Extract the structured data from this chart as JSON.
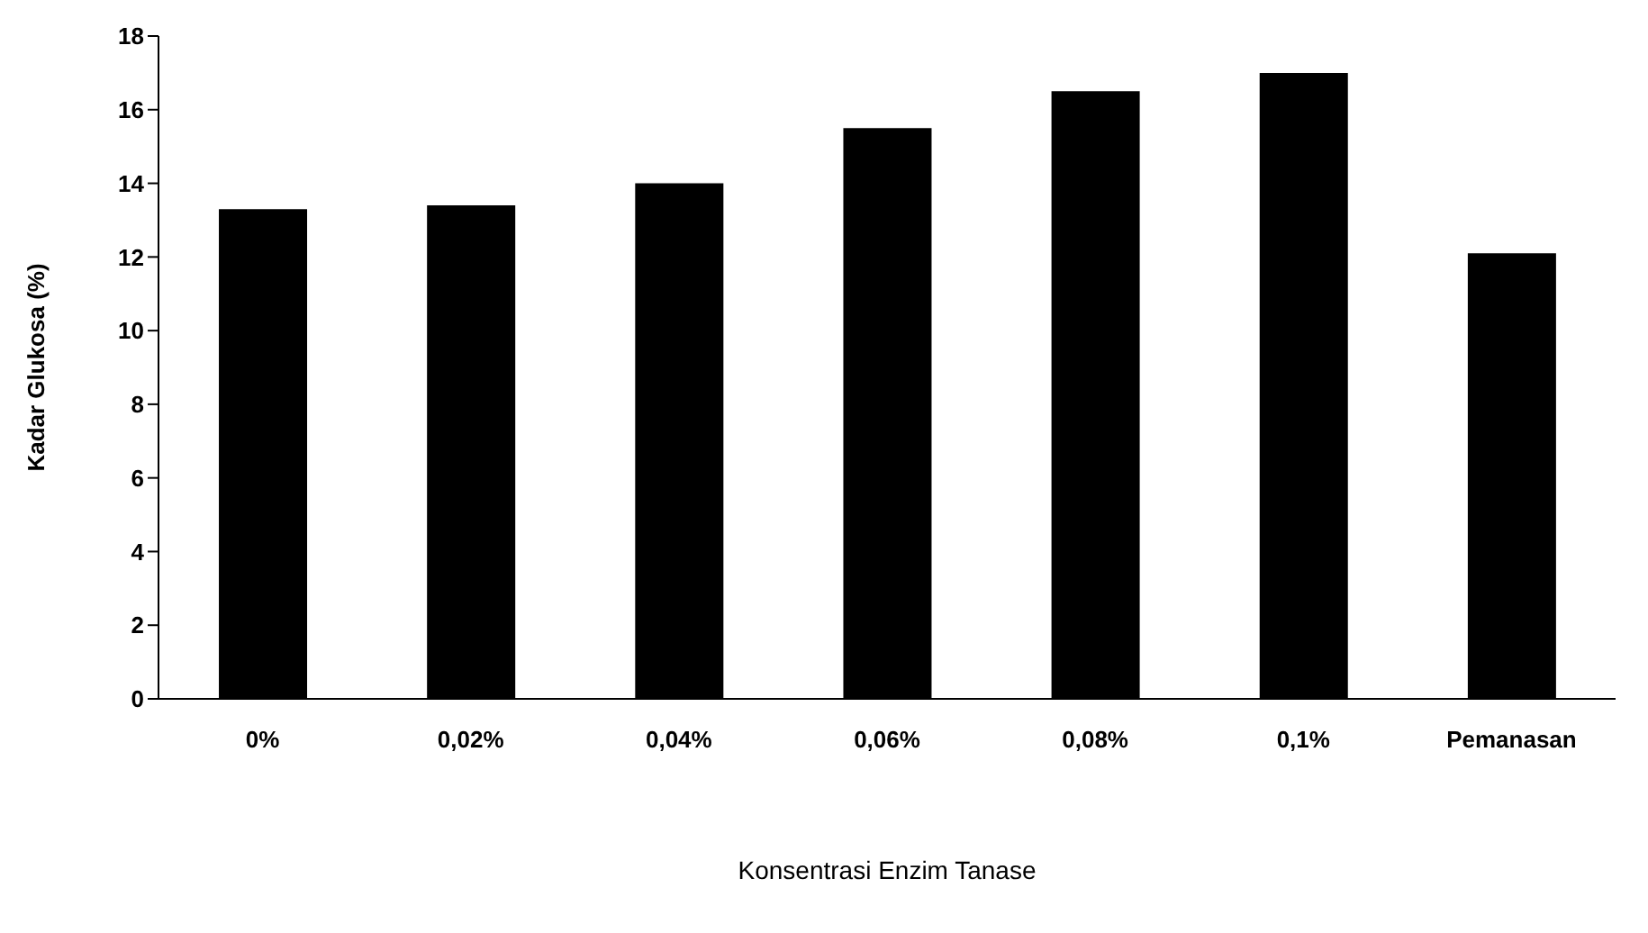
{
  "chart_data": {
    "type": "bar",
    "xlabel": "Konsentrasi Enzim Tanase",
    "ylabel": "Kadar Glukosa (%)",
    "categories": [
      "0%",
      "0,02%",
      "0,04%",
      "0,06%",
      "0,08%",
      "0,1%",
      "Pemanasan"
    ],
    "values": [
      13.3,
      13.4,
      14.0,
      15.5,
      16.5,
      17.0,
      12.1
    ],
    "color": "#000000",
    "ylim": [
      0,
      18
    ],
    "yticks": [
      0,
      2,
      4,
      6,
      8,
      10,
      12,
      14,
      16,
      18
    ],
    "grid": false,
    "legend": false
  }
}
